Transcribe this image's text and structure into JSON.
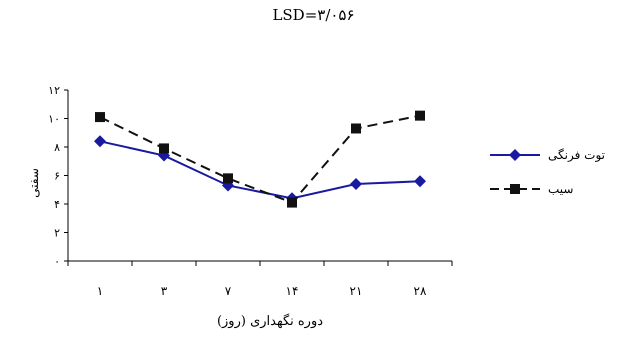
{
  "chart_data": {
    "type": "line",
    "title": "LSD=۳/۰۵۶",
    "xlabel": "دوره نگهداری (روز)",
    "ylabel": "سفتی",
    "categories": [
      "۱",
      "۳",
      "۷",
      "۱۴",
      "۲۱",
      "۲۸"
    ],
    "ylim": [
      0,
      12
    ],
    "yticks": [
      0,
      2,
      4,
      6,
      8,
      10,
      12
    ],
    "ytick_labels": [
      "۰",
      "۲",
      "۴",
      "۶",
      "۸",
      "۱۰",
      "۱۲"
    ],
    "series": [
      {
        "name": "توت فرنگی",
        "values": [
          8.4,
          7.4,
          5.3,
          4.4,
          5.4,
          5.6
        ],
        "color": "#1a1aa0",
        "marker": "diamond",
        "dash": "solid"
      },
      {
        "name": "سیب",
        "values": [
          10.1,
          7.9,
          5.8,
          4.1,
          9.3,
          10.2
        ],
        "color": "#111111",
        "marker": "square",
        "dash": "dashed"
      }
    ],
    "grid": false,
    "legend": "right"
  }
}
